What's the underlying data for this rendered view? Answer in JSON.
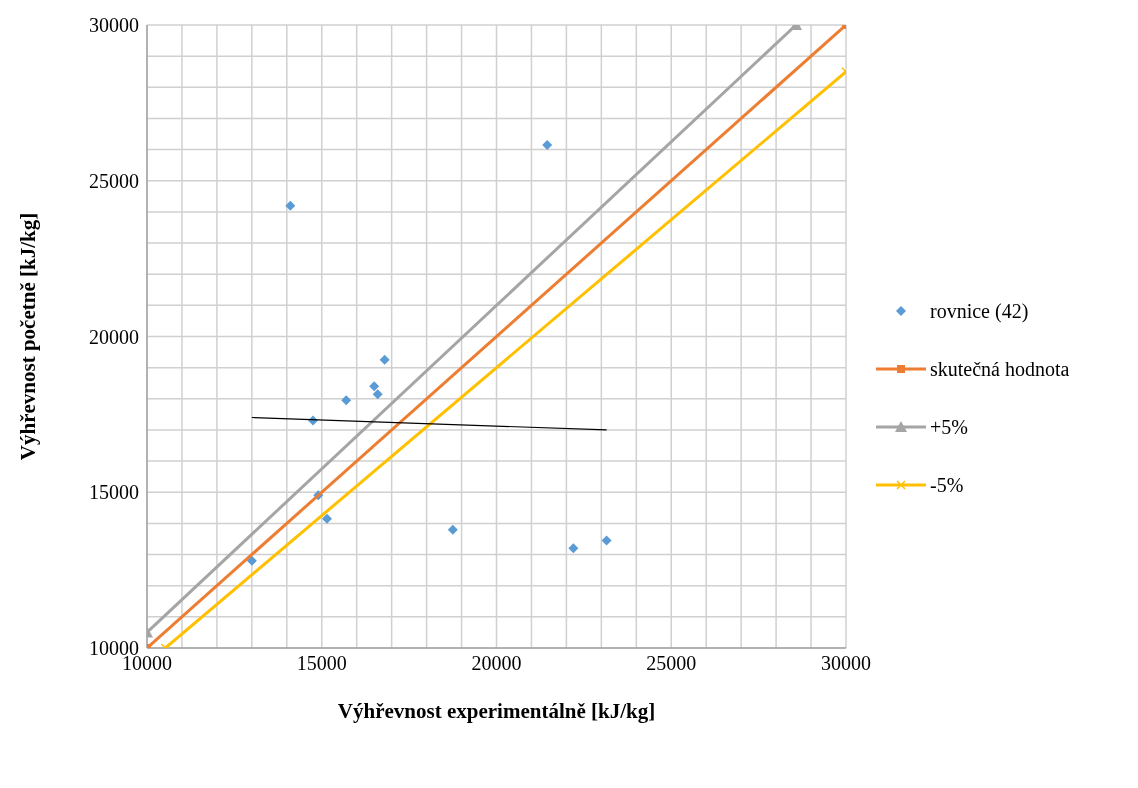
{
  "chart_data": {
    "type": "scatter",
    "xlabel": "Výhřevnost experimentálně [kJ/kg]",
    "ylabel": "Výhřevnost početně [kJ/kg]",
    "xlim": [
      10000,
      30000
    ],
    "ylim": [
      10000,
      30000
    ],
    "xticks": [
      10000,
      {
        "value": 11000,
        "label": null
      },
      {
        "value": 12000,
        "label": null
      },
      {
        "value": 13000,
        "label": null
      },
      {
        "value": 14000,
        "label": null
      },
      15000,
      {
        "value": 16000,
        "label": null
      },
      {
        "value": 17000,
        "label": null
      },
      {
        "value": 18000,
        "label": null
      },
      {
        "value": 19000,
        "label": null
      },
      20000,
      {
        "value": 21000,
        "label": null
      },
      {
        "value": 22000,
        "label": null
      },
      {
        "value": 23000,
        "label": null
      },
      {
        "value": 24000,
        "label": null
      },
      25000,
      {
        "value": 26000,
        "label": null
      },
      {
        "value": 27000,
        "label": null
      },
      {
        "value": 28000,
        "label": null
      },
      {
        "value": 29000,
        "label": null
      },
      30000
    ],
    "yticks": [
      10000,
      {
        "value": 11000,
        "label": null
      },
      {
        "value": 12000,
        "label": null
      },
      {
        "value": 13000,
        "label": null
      },
      {
        "value": 14000,
        "label": null
      },
      15000,
      {
        "value": 16000,
        "label": null
      },
      {
        "value": 17000,
        "label": null
      },
      {
        "value": 18000,
        "label": null
      },
      {
        "value": 19000,
        "label": null
      },
      20000,
      {
        "value": 21000,
        "label": null
      },
      {
        "value": 22000,
        "label": null
      },
      {
        "value": 23000,
        "label": null
      },
      {
        "value": 24000,
        "label": null
      },
      25000,
      {
        "value": 26000,
        "label": null
      },
      {
        "value": 27000,
        "label": null
      },
      {
        "value": 28000,
        "label": null
      },
      {
        "value": 29000,
        "label": null
      },
      30000
    ],
    "grid": true,
    "legend": "right",
    "series": [
      {
        "name": "rovnice (42)",
        "marker": "diamond",
        "color": "#5b9bd5",
        "x": [
          13000,
          14100,
          14750,
          14900,
          15150,
          15700,
          16500,
          16600,
          16800,
          18750,
          21450,
          22200,
          23150
        ],
        "values": [
          12800,
          24200,
          17300,
          14900,
          14150,
          17950,
          18400,
          18150,
          19250,
          13800,
          26150,
          13200,
          13450
        ]
      },
      {
        "name": "skutečná hodnota",
        "type": "line",
        "marker": "square",
        "color": "#ed7d31",
        "x": [
          10000,
          30000
        ],
        "values": [
          10000,
          30000
        ]
      },
      {
        "name": "+5%",
        "type": "line",
        "marker": "triangle",
        "color": "#a5a5a5",
        "x": [
          10000,
          28571
        ],
        "values": [
          10500,
          30000
        ]
      },
      {
        "name": "-5%",
        "type": "line",
        "marker": "cross",
        "color": "#ffc000",
        "x": [
          10526,
          30000
        ],
        "values": [
          10000,
          28500
        ]
      },
      {
        "type": "line",
        "marker": "none",
        "color": "#000000",
        "x": [
          13000,
          23150
        ],
        "values": [
          17400,
          17000
        ]
      }
    ]
  }
}
